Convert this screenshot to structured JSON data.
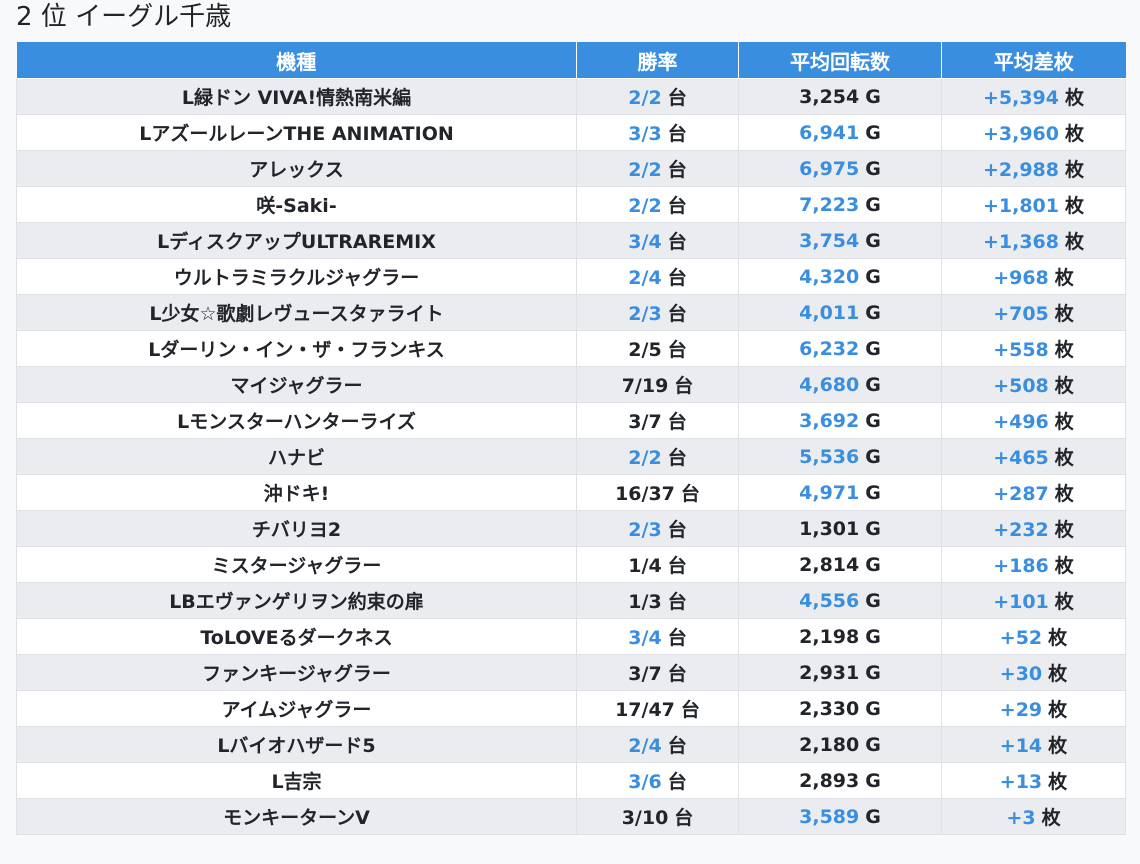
{
  "title": "2 位 イーグル千歳",
  "colors": {
    "header_bg": "#3a8ee0",
    "highlight": "#3a8ee0",
    "row_odd": "#eaecef",
    "row_even": "#ffffff"
  },
  "columns": [
    "機種",
    "勝率",
    "平均回転数",
    "平均差枚"
  ],
  "units": {
    "win": "台",
    "spins": "G",
    "diff": "枚"
  },
  "rows": [
    {
      "machine": "L緑ドン VIVA!情熱南米編",
      "win": "2/2",
      "win_hl": true,
      "spins": "3,254",
      "spins_hl": false,
      "diff": "+5,394",
      "diff_hl": true
    },
    {
      "machine": "LアズールレーンTHE ANIMATION",
      "win": "3/3",
      "win_hl": true,
      "spins": "6,941",
      "spins_hl": true,
      "diff": "+3,960",
      "diff_hl": true
    },
    {
      "machine": "アレックス",
      "win": "2/2",
      "win_hl": true,
      "spins": "6,975",
      "spins_hl": true,
      "diff": "+2,988",
      "diff_hl": true
    },
    {
      "machine": "咲-Saki-",
      "win": "2/2",
      "win_hl": true,
      "spins": "7,223",
      "spins_hl": true,
      "diff": "+1,801",
      "diff_hl": true
    },
    {
      "machine": "LディスクアップULTRAREMIX",
      "win": "3/4",
      "win_hl": true,
      "spins": "3,754",
      "spins_hl": true,
      "diff": "+1,368",
      "diff_hl": true
    },
    {
      "machine": "ウルトラミラクルジャグラー",
      "win": "2/4",
      "win_hl": true,
      "spins": "4,320",
      "spins_hl": true,
      "diff": "+968",
      "diff_hl": true
    },
    {
      "machine": "L少女☆歌劇レヴュースタァライト",
      "win": "2/3",
      "win_hl": true,
      "spins": "4,011",
      "spins_hl": true,
      "diff": "+705",
      "diff_hl": true
    },
    {
      "machine": "Lダーリン・イン・ザ・フランキス",
      "win": "2/5",
      "win_hl": false,
      "spins": "6,232",
      "spins_hl": true,
      "diff": "+558",
      "diff_hl": true
    },
    {
      "machine": "マイジャグラー",
      "win": "7/19",
      "win_hl": false,
      "spins": "4,680",
      "spins_hl": true,
      "diff": "+508",
      "diff_hl": true
    },
    {
      "machine": "Lモンスターハンターライズ",
      "win": "3/7",
      "win_hl": false,
      "spins": "3,692",
      "spins_hl": true,
      "diff": "+496",
      "diff_hl": true
    },
    {
      "machine": "ハナビ",
      "win": "2/2",
      "win_hl": true,
      "spins": "5,536",
      "spins_hl": true,
      "diff": "+465",
      "diff_hl": true
    },
    {
      "machine": "沖ドキ!",
      "win": "16/37",
      "win_hl": false,
      "spins": "4,971",
      "spins_hl": true,
      "diff": "+287",
      "diff_hl": true
    },
    {
      "machine": "チバリヨ2",
      "win": "2/3",
      "win_hl": true,
      "spins": "1,301",
      "spins_hl": false,
      "diff": "+232",
      "diff_hl": true
    },
    {
      "machine": "ミスタージャグラー",
      "win": "1/4",
      "win_hl": false,
      "spins": "2,814",
      "spins_hl": false,
      "diff": "+186",
      "diff_hl": true
    },
    {
      "machine": "LBエヴァンゲリヲン約束の扉",
      "win": "1/3",
      "win_hl": false,
      "spins": "4,556",
      "spins_hl": true,
      "diff": "+101",
      "diff_hl": true
    },
    {
      "machine": "ToLOVEるダークネス",
      "win": "3/4",
      "win_hl": true,
      "spins": "2,198",
      "spins_hl": false,
      "diff": "+52",
      "diff_hl": true
    },
    {
      "machine": "ファンキージャグラー",
      "win": "3/7",
      "win_hl": false,
      "spins": "2,931",
      "spins_hl": false,
      "diff": "+30",
      "diff_hl": true
    },
    {
      "machine": "アイムジャグラー",
      "win": "17/47",
      "win_hl": false,
      "spins": "2,330",
      "spins_hl": false,
      "diff": "+29",
      "diff_hl": true
    },
    {
      "machine": "Lバイオハザード5",
      "win": "2/4",
      "win_hl": true,
      "spins": "2,180",
      "spins_hl": false,
      "diff": "+14",
      "diff_hl": true
    },
    {
      "machine": "L吉宗",
      "win": "3/6",
      "win_hl": true,
      "spins": "2,893",
      "spins_hl": false,
      "diff": "+13",
      "diff_hl": true
    },
    {
      "machine": "モンキーターンV",
      "win": "3/10",
      "win_hl": false,
      "spins": "3,589",
      "spins_hl": true,
      "diff": "+3",
      "diff_hl": true
    }
  ]
}
